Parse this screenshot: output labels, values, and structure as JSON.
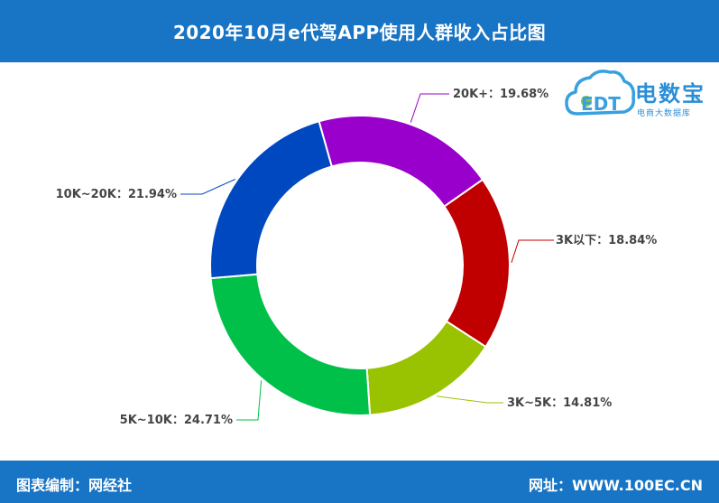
{
  "header": {
    "title": "2020年10月e代驾APP使用人群收入占比图"
  },
  "footer": {
    "left": "图表编制：网经社",
    "right": "网址：WWW.100EC.CN"
  },
  "logo": {
    "brand": "电数宝",
    "sub": "电商大数据库",
    "mark_text": "EDT"
  },
  "colors": {
    "header_bg": "#1874c4"
  },
  "chart_data": {
    "type": "pie",
    "variant": "donut",
    "title": "2020年10月e代驾APP使用人群收入占比图",
    "slices": [
      {
        "label": "3K以下",
        "value": 18.84,
        "display": "3K以下：18.84%",
        "color": "#c00000"
      },
      {
        "label": "3K~5K",
        "value": 14.81,
        "display": "3K~5K：14.81%",
        "color": "#99c300"
      },
      {
        "label": "5K~10K",
        "value": 24.71,
        "display": "5K~10K：24.71%",
        "color": "#00c04a"
      },
      {
        "label": "10K~20K",
        "value": 21.94,
        "display": "10K~20K：21.94%",
        "color": "#0048c0"
      },
      {
        "label": "20K+",
        "value": 19.68,
        "display": "20K+：19.68%",
        "color": "#9900cc"
      }
    ]
  }
}
